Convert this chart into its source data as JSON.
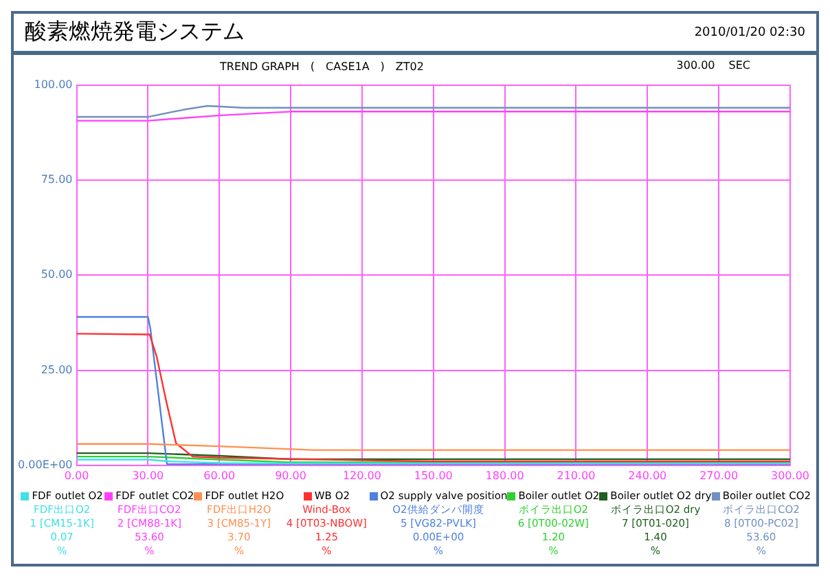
{
  "chart_data": {
    "type": "line",
    "title": "酸素燃焼発電システム",
    "subtitle": "TREND GRAPH　(　CASE1A　)　ZT02",
    "annotations": [
      "2010/01/20 02:30",
      "300.00",
      "SEC",
      "FDF出口O2",
      "1 [CM15-1K]",
      "0.07",
      "%",
      "FDF出口CO2",
      "2 [CM88-1K]",
      "53.60",
      "%",
      "FDF出口H2O",
      "3 [CM85-1Y]",
      "3.70",
      "%",
      "Wind-Box",
      "4 [0T03-NBOW]",
      "1.25",
      "%",
      "O2供給ダンパ開度",
      "5 [VG82-PVLK]",
      "0.00E+00",
      "%",
      "ボイラ出口O2",
      "6 [0T00-02W]",
      "1.20",
      "%",
      "ボイラ出口O2 dry",
      "7 [0T01-020]",
      "1.40",
      "%",
      "ボイラ出口CO2",
      "8 [0T00-PC02]",
      "53.60",
      "%"
    ],
    "xlim": [
      0,
      300
    ],
    "xticks": [
      {
        "value": 0,
        "label": "0.00"
      },
      {
        "value": 30,
        "label": "30.00"
      },
      {
        "value": 60,
        "label": "60.00"
      },
      {
        "value": 90,
        "label": "90.00"
      },
      {
        "value": 120,
        "label": "120.00"
      },
      {
        "value": 150,
        "label": "150.00"
      },
      {
        "value": 180,
        "label": "180.00"
      },
      {
        "value": 210,
        "label": "210.00"
      },
      {
        "value": 240,
        "label": "240.00"
      },
      {
        "value": 270,
        "label": "270.00"
      },
      {
        "value": 300,
        "label": "300.00"
      }
    ],
    "ylim": [
      0,
      100
    ],
    "yticks": [
      {
        "value": 0,
        "label": "0.00E+00"
      },
      {
        "value": 25,
        "label": "25.00"
      },
      {
        "value": 50,
        "label": "50.00"
      },
      {
        "value": 75,
        "label": "75.00"
      },
      {
        "value": 100,
        "label": "100.00"
      }
    ],
    "grid": true,
    "legend": "bottom",
    "marker": "none",
    "line_style": "solid",
    "series": [
      {
        "name": "FDF outlet O2",
        "color": "#40e0e8",
        "x": [
          0,
          30,
          40,
          60,
          90,
          300
        ],
        "values": [
          1.5,
          1.5,
          1.0,
          0.6,
          0.5,
          0.5
        ]
      },
      {
        "name": "FDF outlet CO2",
        "color": "#ff40ff",
        "x": [
          0,
          30,
          60,
          90,
          300
        ],
        "values": [
          90.6,
          90.6,
          92.0,
          93.0,
          93.0
        ]
      },
      {
        "name": "FDF outlet H2O",
        "color": "#ff9050",
        "x": [
          0,
          30,
          60,
          100,
          300
        ],
        "values": [
          5.6,
          5.6,
          5.0,
          4.0,
          4.0
        ]
      },
      {
        "name": "WB O2",
        "color": "#ff3030",
        "x": [
          0,
          30.7,
          33.7,
          37.8,
          41.8,
          48.8,
          60,
          150,
          300
        ],
        "values": [
          34.6,
          34.4,
          28.5,
          16.5,
          5.8,
          2.3,
          2.0,
          1.0,
          1.0
        ]
      },
      {
        "name": "O2 supply valve position",
        "color": "#5080e0",
        "x": [
          0,
          30,
          31,
          38,
          300
        ],
        "values": [
          39,
          39,
          36,
          0.3,
          0.3
        ]
      },
      {
        "name": "Boiler outlet O2",
        "color": "#30d030",
        "x": [
          0,
          30,
          60,
          90,
          300
        ],
        "values": [
          2.3,
          2.3,
          1.5,
          0.8,
          0.8
        ]
      },
      {
        "name": "Boiler outlet O2 dry",
        "color": "#206020",
        "x": [
          0,
          30,
          60,
          90,
          300
        ],
        "values": [
          3.2,
          3.2,
          2.5,
          1.6,
          1.6
        ]
      },
      {
        "name": "Boiler outlet CO2",
        "color": "#7090c0",
        "x": [
          0,
          30,
          45,
          55,
          70,
          300
        ],
        "values": [
          91.6,
          91.6,
          93.5,
          94.5,
          94.0,
          94.0
        ]
      }
    ]
  }
}
